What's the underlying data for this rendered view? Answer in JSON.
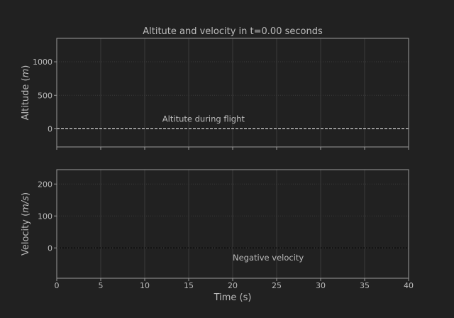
{
  "title": "Altitute and velocity in t=0.00 seconds",
  "colors": {
    "background": "#212121",
    "text": "#bcbcbc",
    "axis": "#9a9a9a",
    "grid": "#3a3a3a",
    "altitude_line": "#ffffff",
    "velocity_line": "#0a0a0a"
  },
  "chart_data": [
    {
      "type": "line",
      "title": "Altitute and velocity in t=0.00 seconds",
      "xlabel": "",
      "ylabel": "Altitude (m)",
      "ylabel_prefix": "Altitude (",
      "ylabel_unit": "m",
      "ylabel_suffix": ")",
      "xlim": [
        0,
        40
      ],
      "ylim": [
        -270,
        1350
      ],
      "yticks": [
        0,
        500,
        1000
      ],
      "xticks": [
        0,
        5,
        10,
        15,
        20,
        25,
        30,
        35,
        40
      ],
      "grid": true,
      "annotation": {
        "text": "Altitute during flight",
        "x": 12,
        "y": 150
      },
      "series": [
        {
          "name": "",
          "style": "dashed",
          "x": [
            0,
            40
          ],
          "y": [
            0,
            0
          ]
        }
      ]
    },
    {
      "type": "line",
      "title": "",
      "xlabel": "Time (s)",
      "ylabel": "Velocity (m/s)",
      "ylabel_prefix": "Velocity (",
      "ylabel_unit": "m/s",
      "ylabel_suffix": ")",
      "xlim": [
        0,
        40
      ],
      "ylim": [
        -95,
        245
      ],
      "yticks": [
        0,
        100,
        200
      ],
      "xticks": [
        0,
        5,
        10,
        15,
        20,
        25,
        30,
        35,
        40
      ],
      "xticklabels": [
        "0",
        "5",
        "10",
        "15",
        "20",
        "25",
        "30",
        "35",
        "40"
      ],
      "grid": true,
      "annotation": {
        "text": "Negative velocity",
        "x": 20,
        "y": -30
      },
      "series": [
        {
          "name": "",
          "style": "dotted",
          "x": [
            0,
            40
          ],
          "y": [
            0,
            0
          ]
        }
      ]
    }
  ]
}
